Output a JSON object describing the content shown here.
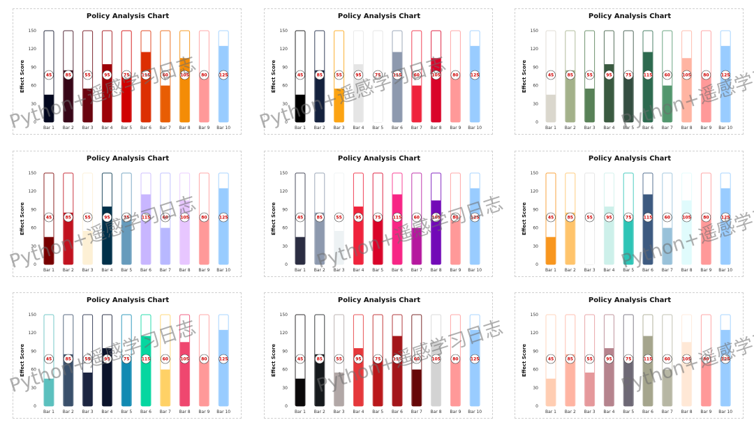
{
  "chart_data": [
    {
      "type": "bar",
      "title": "Policy Analysis Chart",
      "ylabel": "Effect Score",
      "ylim": [
        0,
        150
      ],
      "yticks": [
        0,
        30,
        60,
        90,
        120,
        150
      ],
      "categories": [
        "Bar 1",
        "Bar 2",
        "Bar 3",
        "Bar 4",
        "Bar 5",
        "Bar 6",
        "Bar 7",
        "Bar 8",
        "Bar 9",
        "Bar 10"
      ],
      "values": [
        45,
        85,
        55,
        95,
        75,
        115,
        60,
        105,
        80,
        125
      ],
      "colors": [
        "#03071e",
        "#370617",
        "#6a040f",
        "#9d0208",
        "#d00000",
        "#dc2f02",
        "#e85d04",
        "#f48c06",
        "#ff9999",
        "#99ccff"
      ]
    },
    {
      "type": "bar",
      "title": "Policy Analysis Chart",
      "ylabel": "Effect Score",
      "ylim": [
        0,
        150
      ],
      "yticks": [
        0,
        30,
        60,
        90,
        120,
        150
      ],
      "categories": [
        "Bar 1",
        "Bar 2",
        "Bar 3",
        "Bar 4",
        "Bar 5",
        "Bar 6",
        "Bar 7",
        "Bar 8",
        "Bar 9",
        "Bar 10"
      ],
      "values": [
        45,
        85,
        55,
        95,
        75,
        115,
        60,
        105,
        80,
        125
      ],
      "colors": [
        "#000000",
        "#14213d",
        "#fca311",
        "#e5e5e5",
        "#ffffff",
        "#8d99ae",
        "#ef233c",
        "#d90429",
        "#ff9999",
        "#99ccff"
      ]
    },
    {
      "type": "bar",
      "title": "Policy Analysis Chart",
      "ylabel": "Effect Score",
      "ylim": [
        0,
        150
      ],
      "yticks": [
        0,
        30,
        60,
        90,
        120,
        150
      ],
      "categories": [
        "Bar 1",
        "Bar 2",
        "Bar 3",
        "Bar 4",
        "Bar 5",
        "Bar 6",
        "Bar 7",
        "Bar 8",
        "Bar 9",
        "Bar 10"
      ],
      "values": [
        45,
        85,
        55,
        95,
        75,
        115,
        60,
        105,
        80,
        125
      ],
      "colors": [
        "#dad7cd",
        "#a3b18a",
        "#588157",
        "#3a5a40",
        "#344e41",
        "#2d6a4f",
        "#52966d",
        "#ffb4a2",
        "#ff9999",
        "#99ccff"
      ]
    },
    {
      "type": "bar",
      "title": "Policy Analysis Chart",
      "ylabel": "Effect Score",
      "ylim": [
        0,
        150
      ],
      "yticks": [
        0,
        30,
        60,
        90,
        120,
        150
      ],
      "categories": [
        "Bar 1",
        "Bar 2",
        "Bar 3",
        "Bar 4",
        "Bar 5",
        "Bar 6",
        "Bar 7",
        "Bar 8",
        "Bar 9",
        "Bar 10"
      ],
      "values": [
        45,
        85,
        55,
        95,
        75,
        115,
        60,
        105,
        80,
        125
      ],
      "colors": [
        "#780000",
        "#c1121f",
        "#fdf0d5",
        "#003049",
        "#669bbc",
        "#c8b6ff",
        "#b8b8ff",
        "#e7c6ff",
        "#ff9999",
        "#99ccff"
      ]
    },
    {
      "type": "bar",
      "title": "Policy Analysis Chart",
      "ylabel": "Effect Score",
      "ylim": [
        0,
        150
      ],
      "yticks": [
        0,
        30,
        60,
        90,
        120,
        150
      ],
      "categories": [
        "Bar 1",
        "Bar 2",
        "Bar 3",
        "Bar 4",
        "Bar 5",
        "Bar 6",
        "Bar 7",
        "Bar 8",
        "Bar 9",
        "Bar 10"
      ],
      "values": [
        45,
        85,
        55,
        95,
        75,
        115,
        60,
        105,
        80,
        125
      ],
      "colors": [
        "#2b2d42",
        "#8d99ae",
        "#edf2f4",
        "#ef233c",
        "#d90429",
        "#f72585",
        "#b5179e",
        "#7209b7",
        "#ff9999",
        "#99ccff"
      ]
    },
    {
      "type": "bar",
      "title": "Policy Analysis Chart",
      "ylabel": "Effect Score",
      "ylim": [
        0,
        150
      ],
      "yticks": [
        0,
        30,
        60,
        90,
        120,
        150
      ],
      "categories": [
        "Bar 1",
        "Bar 2",
        "Bar 3",
        "Bar 4",
        "Bar 5",
        "Bar 6",
        "Bar 7",
        "Bar 8",
        "Bar 9",
        "Bar 10"
      ],
      "values": [
        45,
        85,
        55,
        95,
        75,
        115,
        60,
        105,
        80,
        125
      ],
      "colors": [
        "#f8961e",
        "#ffc46b",
        "#ffffff",
        "#cdf0ea",
        "#2ec4b6",
        "#3d5a80",
        "#98c1d9",
        "#e0fbfc",
        "#ff9999",
        "#99ccff"
      ]
    },
    {
      "type": "bar",
      "title": "Policy Analysis Chart",
      "ylabel": "Effect Score",
      "ylim": [
        0,
        150
      ],
      "yticks": [
        0,
        30,
        60,
        90,
        120,
        150
      ],
      "categories": [
        "Bar 1",
        "Bar 2",
        "Bar 3",
        "Bar 4",
        "Bar 5",
        "Bar 6",
        "Bar 7",
        "Bar 8",
        "Bar 9",
        "Bar 10"
      ],
      "values": [
        45,
        85,
        55,
        95,
        75,
        115,
        60,
        105,
        80,
        125
      ],
      "colors": [
        "#5bc0be",
        "#3a506b",
        "#1c2541",
        "#0b132b",
        "#118ab2",
        "#06d6a0",
        "#ffd166",
        "#ef476f",
        "#ff9999",
        "#99ccff"
      ]
    },
    {
      "type": "bar",
      "title": "Policy Analysis Chart",
      "ylabel": "Effect Score",
      "ylim": [
        0,
        150
      ],
      "yticks": [
        0,
        30,
        60,
        90,
        120,
        150
      ],
      "categories": [
        "Bar 1",
        "Bar 2",
        "Bar 3",
        "Bar 4",
        "Bar 5",
        "Bar 6",
        "Bar 7",
        "Bar 8",
        "Bar 9",
        "Bar 10"
      ],
      "values": [
        45,
        85,
        55,
        95,
        75,
        115,
        60,
        105,
        80,
        125
      ],
      "colors": [
        "#0b090a",
        "#161a1d",
        "#b1a7a6",
        "#e5383b",
        "#ba181b",
        "#a4161a",
        "#660708",
        "#d3d3d3",
        "#ff9999",
        "#99ccff"
      ]
    },
    {
      "type": "bar",
      "title": "Policy Analysis Chart",
      "ylabel": "Effect Score",
      "ylim": [
        0,
        150
      ],
      "yticks": [
        0,
        30,
        60,
        90,
        120,
        150
      ],
      "categories": [
        "Bar 1",
        "Bar 2",
        "Bar 3",
        "Bar 4",
        "Bar 5",
        "Bar 6",
        "Bar 7",
        "Bar 8",
        "Bar 9",
        "Bar 10"
      ],
      "values": [
        45,
        85,
        55,
        95,
        75,
        115,
        60,
        105,
        80,
        125
      ],
      "colors": [
        "#ffcdb2",
        "#ffb4a2",
        "#e5989b",
        "#b5838d",
        "#6d6875",
        "#a5a58d",
        "#b7b7a4",
        "#ffe8d6",
        "#ff9999",
        "#99ccff"
      ]
    }
  ],
  "watermark": {
    "text": "Python+遥感学习日志"
  }
}
